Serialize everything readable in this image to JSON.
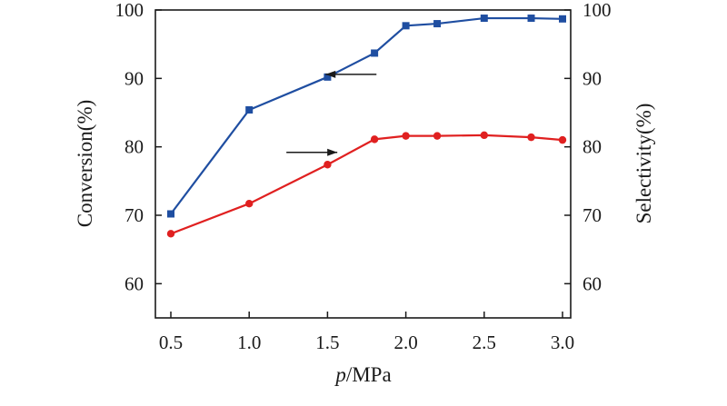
{
  "chart_data": {
    "type": "line",
    "title": "",
    "xlabel_italic": "p",
    "xlabel_rest": "/MPa",
    "ylabel_left": "Conversion(%)",
    "ylabel_right": "Selectivity(%)",
    "xlim": [
      0.5,
      3.0
    ],
    "ylim": [
      55,
      100
    ],
    "x_ticks": [
      "0.5",
      "1.0",
      "1.5",
      "2.0",
      "2.5",
      "3.0"
    ],
    "y_ticks": [
      "60",
      "70",
      "80",
      "90",
      "100"
    ],
    "grid": false,
    "series": [
      {
        "axis": "left",
        "color": "#1f4ea1",
        "marker": "square",
        "x": [
          0.5,
          1.0,
          1.5,
          1.8,
          2.0,
          2.2,
          2.5,
          2.8,
          3.0
        ],
        "y": [
          70.2,
          85.4,
          90.2,
          93.7,
          97.7,
          98.0,
          98.8,
          98.8,
          98.7
        ]
      },
      {
        "axis": "right",
        "color": "#e02020",
        "marker": "circle",
        "x": [
          0.5,
          1.0,
          1.5,
          1.8,
          2.0,
          2.2,
          2.5,
          2.8,
          3.0
        ],
        "y": [
          67.3,
          71.7,
          77.4,
          81.1,
          81.6,
          81.6,
          81.7,
          81.4,
          81.0
        ]
      }
    ],
    "annotations": [
      {
        "type": "arrow",
        "direction": "left",
        "points_to": "left-axis",
        "near_x": 1.65,
        "near_y": 90.6
      },
      {
        "type": "arrow",
        "direction": "right",
        "points_to": "right-axis",
        "near_x": 1.4,
        "near_y": 79.2
      }
    ]
  }
}
